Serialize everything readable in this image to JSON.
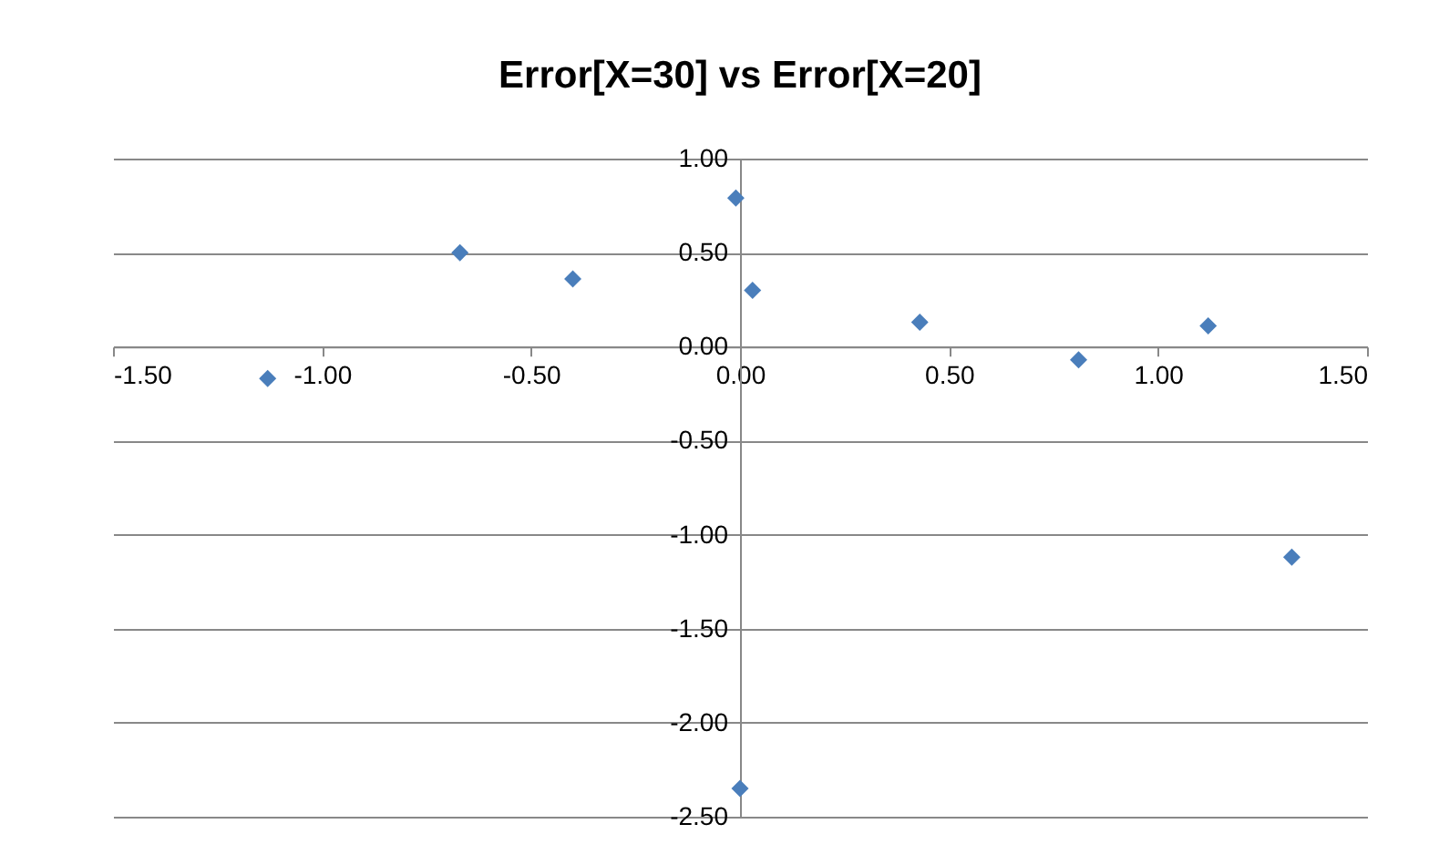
{
  "chart_data": {
    "type": "scatter",
    "title": "Error[X=30] vs Error[X=20]",
    "x": [
      -1.13,
      -0.67,
      -0.4,
      -0.01,
      0.03,
      0.43,
      0.81,
      1.12,
      1.32,
      0.0
    ],
    "values": [
      -0.17,
      0.5,
      0.36,
      0.79,
      0.3,
      0.13,
      -0.07,
      0.11,
      -1.12,
      -2.35
    ],
    "color": "#4a7ebb",
    "marker": "diamond",
    "grid": "y",
    "xlim": [
      -1.5,
      1.5
    ],
    "xticks": [
      {
        "value": -1.5,
        "label": "-1.50"
      },
      {
        "value": -1,
        "label": "-1.00"
      },
      {
        "value": -0.5,
        "label": "-0.50"
      },
      {
        "value": 0,
        "label": "0.00"
      },
      {
        "value": 0.5,
        "label": "0.50"
      },
      {
        "value": 1,
        "label": "1.00"
      },
      {
        "value": 1.5,
        "label": "1.50"
      }
    ],
    "ylim": [
      -2.5,
      1
    ],
    "yticks": [
      {
        "value": -2.5,
        "label": "-2.50"
      },
      {
        "value": -2,
        "label": "-2.00"
      },
      {
        "value": -1.5,
        "label": "-1.50"
      },
      {
        "value": -1,
        "label": "-1.00"
      },
      {
        "value": -0.5,
        "label": "-0.50"
      },
      {
        "value": 0,
        "label": "0.00"
      },
      {
        "value": 0.5,
        "label": "0.50"
      },
      {
        "value": 1,
        "label": "1.00"
      }
    ]
  }
}
